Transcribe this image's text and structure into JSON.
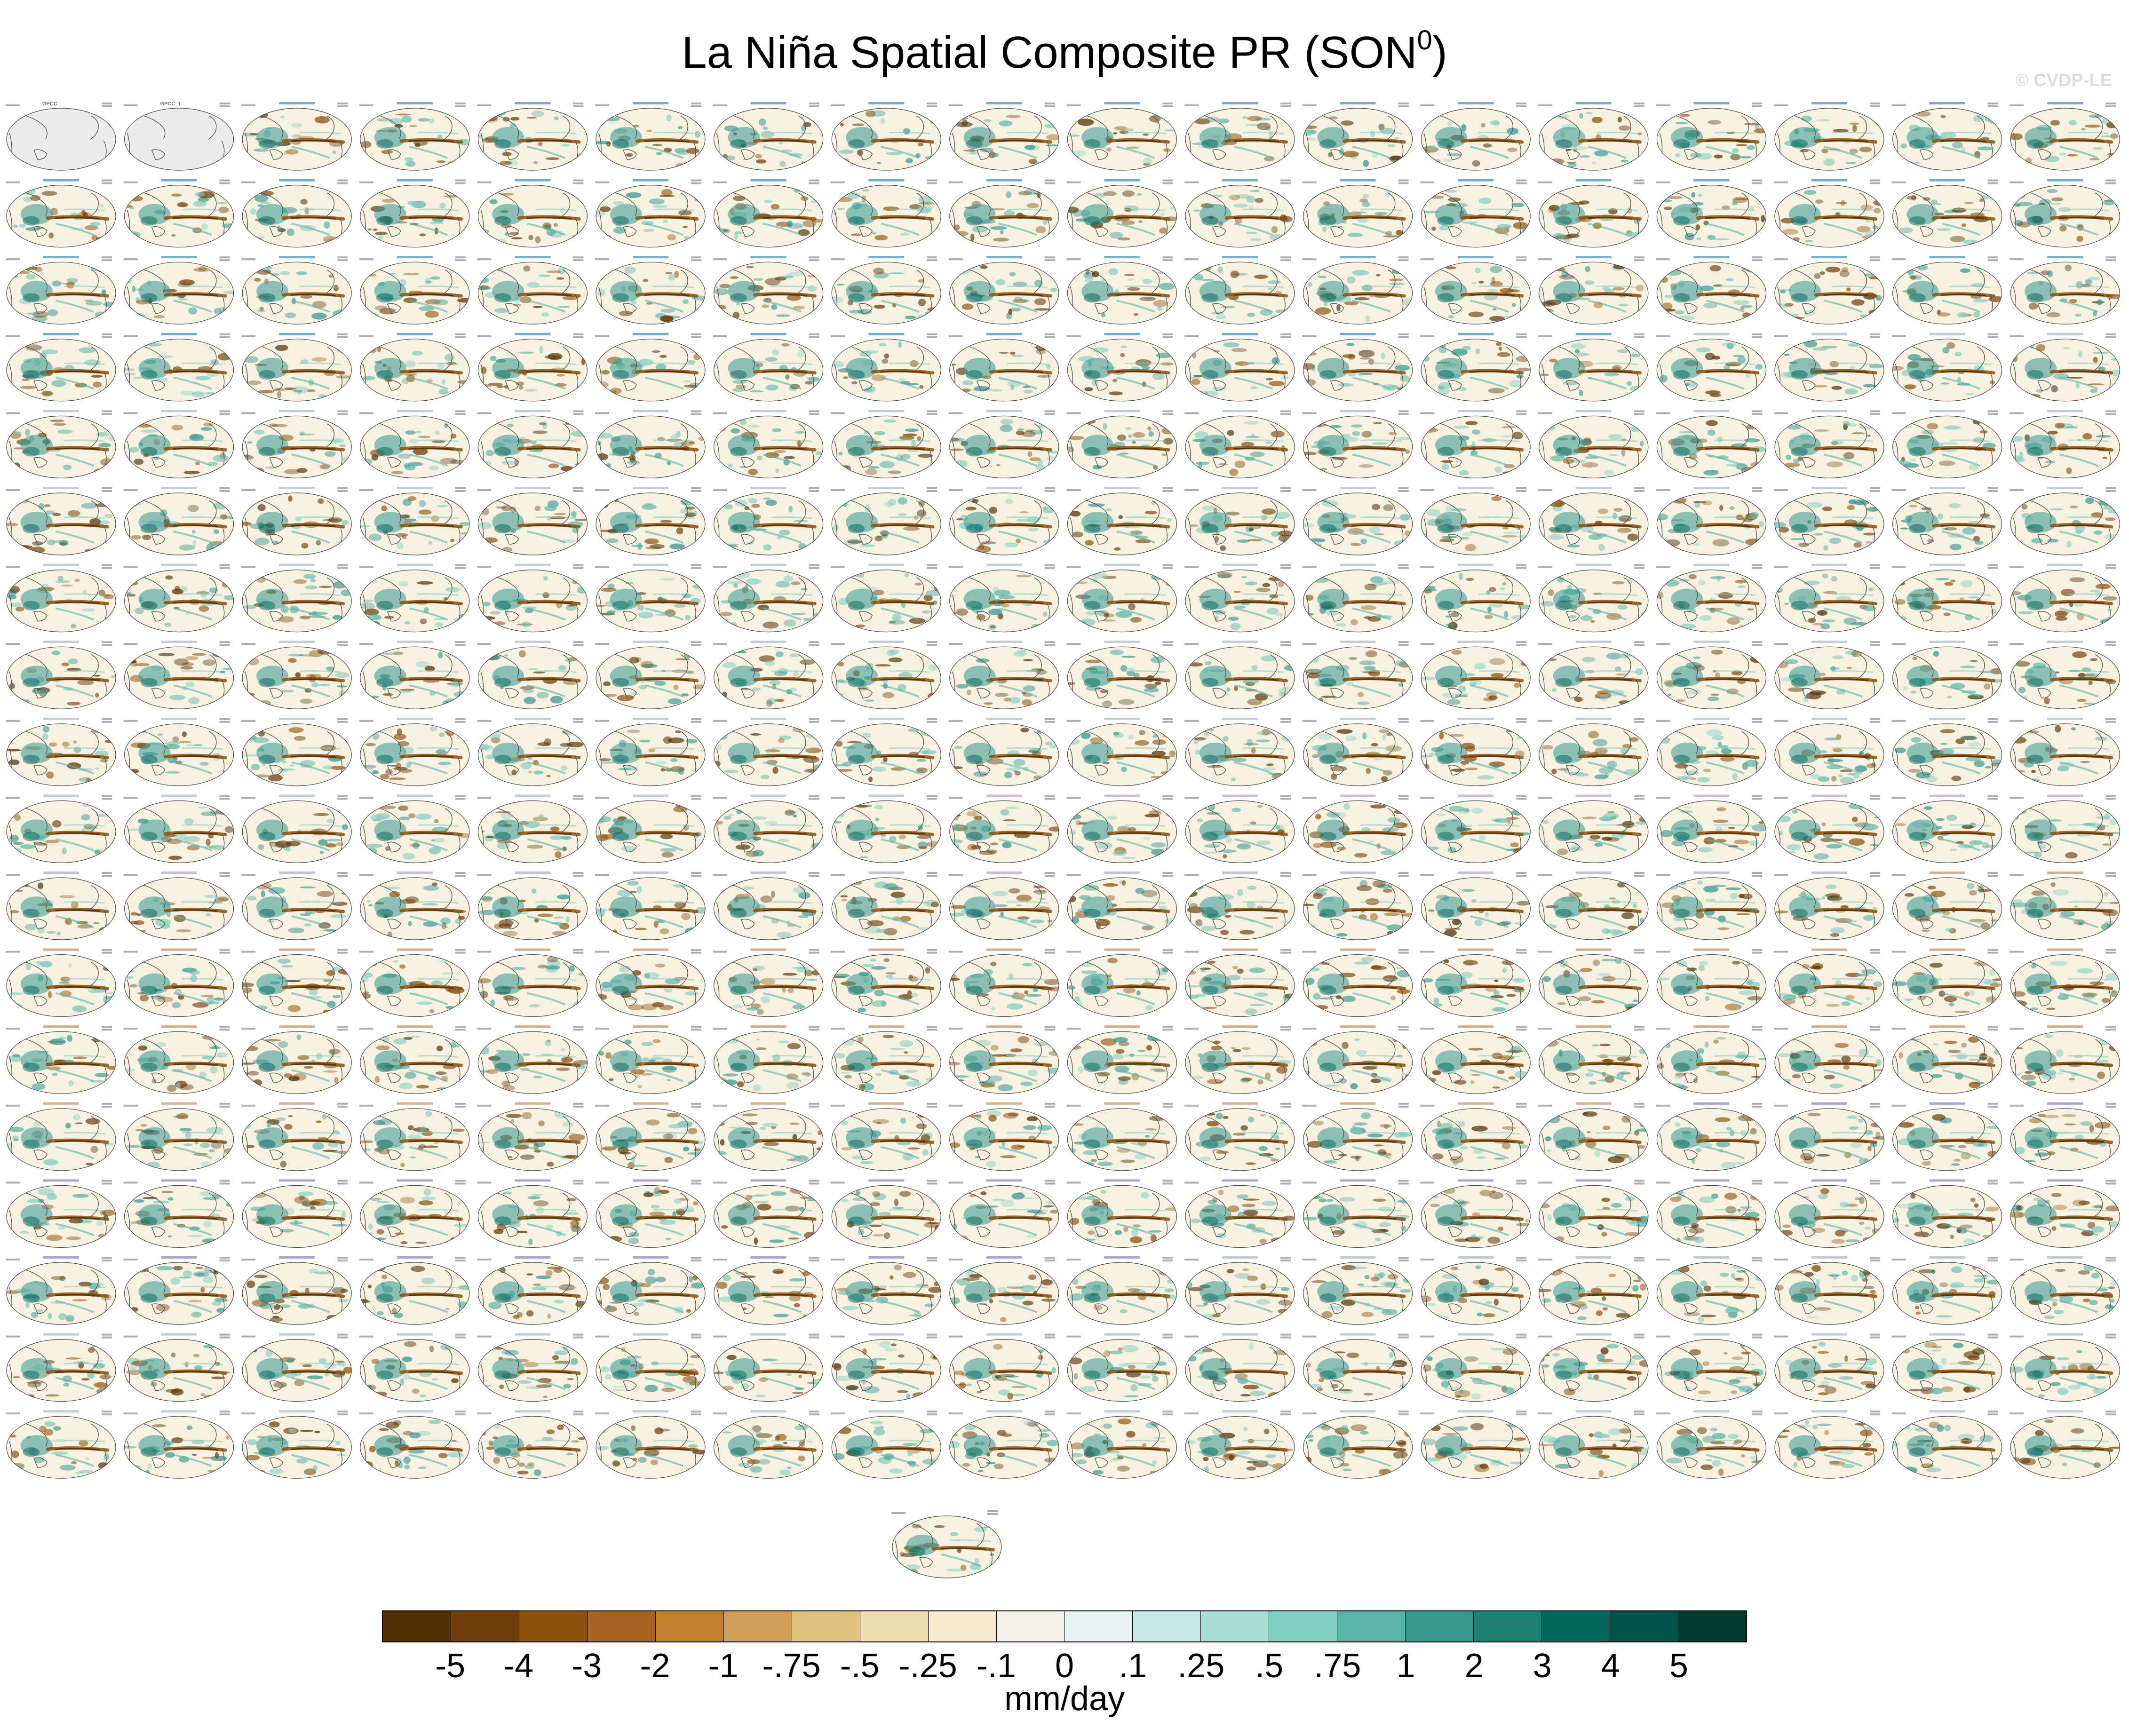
{
  "title": "La Niña Spatial Composite PR (SON",
  "title_sup": "0",
  "title_close": ")",
  "watermark": "© CVDP-LE",
  "colors": {
    "ocean": "#f6f1e1",
    "land": "#ececec",
    "coast": "#555555",
    "label_cesm": "#3a87b8",
    "label_lens": "#a8b8c8",
    "label_cmip": "#b8a0c8",
    "label_gfdl": "#c88a5a",
    "label_ipsl": "#8a7ad0"
  },
  "chart_data": {
    "type": "heatmap",
    "title": "La Niña Spatial Composite PR (SON0)",
    "grid": {
      "rows": 18,
      "columns": 18,
      "extra_panels": 1
    },
    "observation_panels": [
      "GPCC",
      "GPCC_1"
    ],
    "colorbar": {
      "units": "mm/day",
      "labels": [
        "-5",
        "-4",
        "-3",
        "-2",
        "-1",
        "-.75",
        "-.5",
        "-.25",
        "-.1",
        "0",
        ".1",
        ".25",
        ".5",
        ".75",
        "1",
        "2",
        "3",
        "4",
        "5"
      ],
      "colors": [
        "#543005",
        "#6e3e0a",
        "#8c510a",
        "#a86322",
        "#bf812d",
        "#d0a05a",
        "#dfc27d",
        "#efdcae",
        "#f6ead0",
        "#f5f2e9",
        "#e6f2ef",
        "#c7eae5",
        "#a8ddd5",
        "#80cdc1",
        "#5ab4a7",
        "#35978f",
        "#1d8175",
        "#01665e",
        "#00544a",
        "#003c30"
      ]
    }
  }
}
